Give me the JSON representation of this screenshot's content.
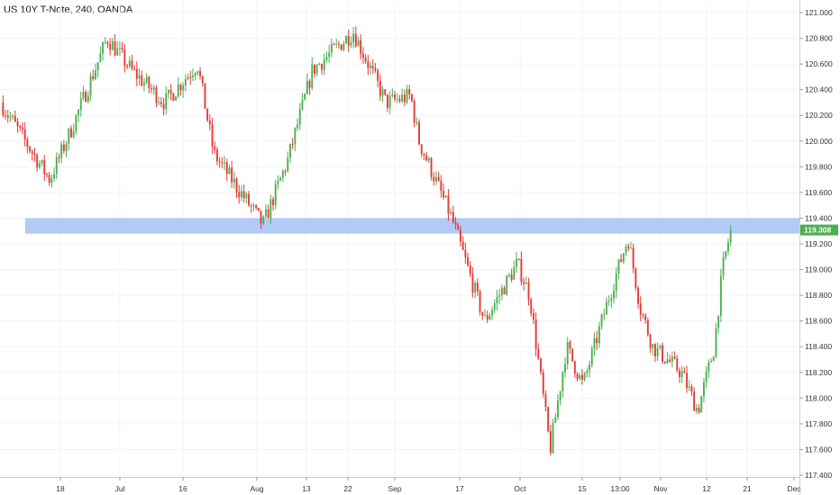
{
  "header": {
    "title": "US 10Y T-Note, 240, OANDA"
  },
  "chart_data": {
    "type": "candlestick",
    "title": "US 10Y T-Note, 240, OANDA",
    "y_axis": {
      "range": [
        117.35,
        121.05
      ],
      "ticks": [
        "121.000",
        "120.800",
        "120.600",
        "120.400",
        "120.200",
        "120.000",
        "119.800",
        "119.600",
        "119.400",
        "119.200",
        "119.000",
        "118.800",
        "118.600",
        "118.400",
        "118.200",
        "118.000",
        "117.800",
        "117.600",
        "117.400"
      ],
      "position": "right"
    },
    "x_axis": {
      "labels": [
        "18",
        "Jul",
        "16",
        "Aug",
        "13",
        "22",
        "Sep",
        "17",
        "Oct",
        "15",
        "13:00",
        "Nov",
        "12",
        "21",
        "Dec"
      ]
    },
    "last_price": {
      "value": 119.308,
      "label": "119.308",
      "color": "#4caf50"
    },
    "zone": {
      "from": 119.28,
      "to": 119.4,
      "color": "#a9c4f5"
    },
    "colors": {
      "up": "#4caf50",
      "down": "#e53935",
      "grid": "#f0f3fa",
      "axis_text": "#333333"
    },
    "path": [
      [
        0,
        120.3
      ],
      [
        0.03,
        120.0
      ],
      [
        0.06,
        119.7
      ],
      [
        0.09,
        120.15
      ],
      [
        0.13,
        120.8
      ],
      [
        0.16,
        120.55
      ],
      [
        0.2,
        120.3
      ],
      [
        0.24,
        120.6
      ],
      [
        0.26,
        119.9
      ],
      [
        0.32,
        119.35
      ],
      [
        0.35,
        119.85
      ],
      [
        0.38,
        120.55
      ],
      [
        0.43,
        120.85
      ],
      [
        0.47,
        120.3
      ],
      [
        0.5,
        120.35
      ],
      [
        0.51,
        120.0
      ],
      [
        0.55,
        119.4
      ],
      [
        0.57,
        119.0
      ],
      [
        0.59,
        118.6
      ],
      [
        0.63,
        119.05
      ],
      [
        0.645,
        118.8
      ],
      [
        0.67,
        117.6
      ],
      [
        0.69,
        118.4
      ],
      [
        0.71,
        118.1
      ],
      [
        0.74,
        118.75
      ],
      [
        0.765,
        119.25
      ],
      [
        0.78,
        118.7
      ],
      [
        0.795,
        118.4
      ],
      [
        0.83,
        118.2
      ],
      [
        0.85,
        117.9
      ],
      [
        0.87,
        118.4
      ],
      [
        0.88,
        119.0
      ],
      [
        0.89,
        119.308
      ]
    ],
    "grid": true,
    "legend": "none"
  }
}
